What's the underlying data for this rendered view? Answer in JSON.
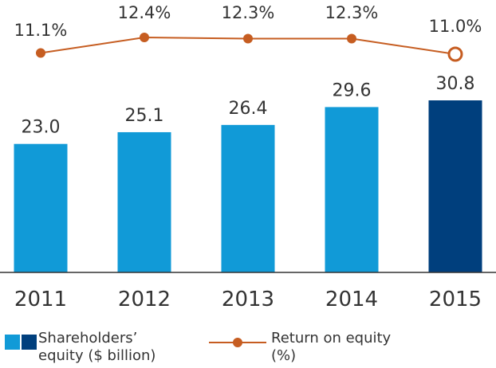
{
  "chart_data": {
    "type": "bar",
    "categories": [
      "2011",
      "2012",
      "2013",
      "2014",
      "2015"
    ],
    "series": [
      {
        "name": "Shareholders’ equity ($ billion)",
        "kind": "bar",
        "values": [
          23.0,
          25.1,
          26.4,
          29.6,
          30.8
        ],
        "labels": [
          "23.0",
          "25.1",
          "26.4",
          "29.6",
          "30.8"
        ]
      },
      {
        "name": "Return on equity (%)",
        "kind": "line",
        "values": [
          11.1,
          12.4,
          12.3,
          12.3,
          11.0
        ],
        "labels": [
          "11.1%",
          "12.4%",
          "12.3%",
          "12.3%",
          "11.0%"
        ]
      }
    ],
    "title": "",
    "xlabel": "",
    "ylabel": "",
    "bar_ylim": [
      0,
      30.8
    ],
    "line_ylim": [
      11.0,
      12.4
    ],
    "grid": false,
    "legend_position": "bottom",
    "colors": {
      "bar": "#119ad7",
      "bar_highlight": "#003f7d",
      "line": "#c65d21",
      "axis": "#333333"
    }
  },
  "legend": {
    "bar_line1": "Shareholders’",
    "bar_line2": "equity ($ billion)",
    "line_line1": "Return on equity",
    "line_line2": "(%)"
  }
}
